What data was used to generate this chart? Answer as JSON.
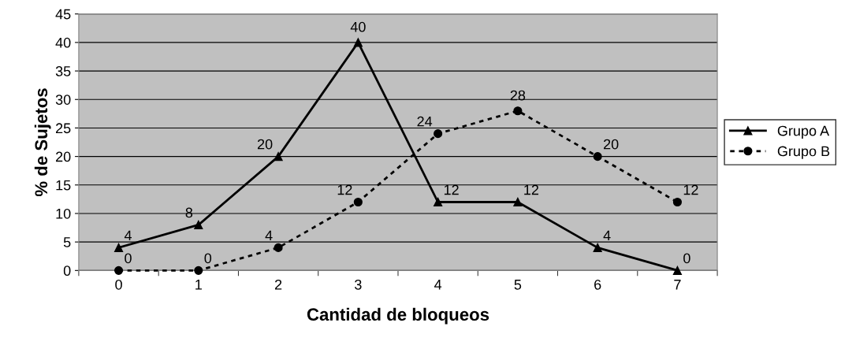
{
  "chart_data": {
    "type": "line",
    "xlabel": "Cantidad de bloqueos",
    "ylabel": "% de Sujetos",
    "categories": [
      "0",
      "1",
      "2",
      "3",
      "4",
      "5",
      "6",
      "7"
    ],
    "series": [
      {
        "name": "Grupo A",
        "color": "#000000",
        "marker": "triangle",
        "line_style": "solid",
        "values": [
          4,
          8,
          20,
          40,
          12,
          12,
          4,
          0
        ]
      },
      {
        "name": "Grupo B",
        "color": "#000000",
        "marker": "circle",
        "line_style": "dotted",
        "values": [
          0,
          0,
          4,
          12,
          24,
          28,
          20,
          12
        ]
      }
    ],
    "ylim": [
      0,
      45
    ],
    "yticks": [
      0,
      5,
      10,
      15,
      20,
      25,
      30,
      35,
      40,
      45
    ],
    "grid": "y",
    "legend": "right",
    "data_labels": true
  }
}
